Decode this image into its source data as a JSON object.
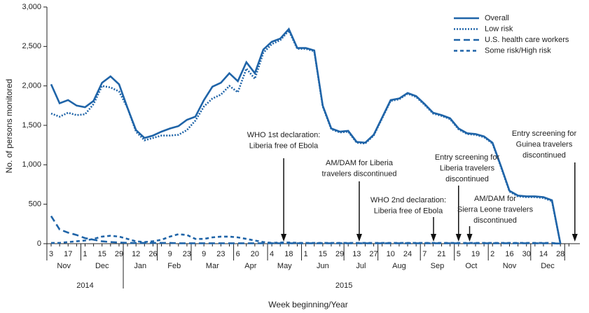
{
  "chart_data": {
    "type": "line",
    "ylabel": "No. of persons monitored",
    "xlabel": "Week beginning/Year",
    "ylim": [
      0,
      3000
    ],
    "yticks": [
      0,
      500,
      {
        "value": 1000,
        "label": "1,000"
      },
      {
        "value": 1500,
        "label": "1,500"
      },
      {
        "value": 2000,
        "label": "2,000"
      },
      {
        "value": 2500,
        "label": "2,500"
      },
      {
        "value": 3000,
        "label": "3,000"
      }
    ],
    "grid": false,
    "legend": "upper right",
    "categories": [
      "3",
      null,
      "17",
      null,
      "1",
      null,
      "15",
      null,
      "29",
      null,
      "12",
      null,
      "26",
      null,
      "9",
      null,
      "23",
      null,
      "9",
      null,
      "23",
      null,
      "6",
      null,
      "20",
      null,
      "4",
      null,
      "18",
      null,
      "1",
      null,
      "15",
      null,
      "29",
      null,
      "13",
      null,
      "27",
      null,
      "10",
      null,
      "24",
      null,
      "7",
      null,
      "21",
      null,
      "5",
      null,
      "19",
      null,
      "2",
      null,
      "16",
      null,
      "30",
      null,
      "14",
      null,
      "28",
      null
    ],
    "month_groups": [
      {
        "label": "Nov",
        "weeks": 4
      },
      {
        "label": "Dec",
        "weeks": 5
      },
      {
        "label": "Jan",
        "weeks": 4
      },
      {
        "label": "Feb",
        "weeks": 4
      },
      {
        "label": "Mar",
        "weeks": 5
      },
      {
        "label": "Apr",
        "weeks": 4
      },
      {
        "label": "May",
        "weeks": 4
      },
      {
        "label": "Jun",
        "weeks": 5
      },
      {
        "label": "Jul",
        "weeks": 4
      },
      {
        "label": "Aug",
        "weeks": 5
      },
      {
        "label": "Sep",
        "weeks": 4
      },
      {
        "label": "Oct",
        "weeks": 4
      },
      {
        "label": "Nov",
        "weeks": 5
      },
      {
        "label": "Dec",
        "weeks": 4
      }
    ],
    "year_groups": [
      {
        "label": "2014",
        "weeks": 9
      },
      {
        "label": "2015",
        "weeks": 52
      }
    ],
    "series": [
      {
        "name": "Overall",
        "color": "#1f64a8",
        "dash": "solid",
        "values": [
          2020,
          1780,
          1820,
          1750,
          1730,
          1810,
          2040,
          2120,
          2020,
          1720,
          1440,
          1340,
          1370,
          1420,
          1460,
          1490,
          1570,
          1610,
          1820,
          1990,
          2040,
          2160,
          2060,
          2300,
          2160,
          2460,
          2560,
          2600,
          2720,
          2480,
          2480,
          2450,
          1750,
          1460,
          1420,
          1430,
          1290,
          1280,
          1380,
          1600,
          1820,
          1840,
          1910,
          1870,
          1770,
          1660,
          1630,
          1590,
          1460,
          1400,
          1390,
          1360,
          1280,
          980,
          670,
          610,
          600,
          600,
          590,
          550,
          0,
          null
        ]
      },
      {
        "name": "Low risk",
        "color": "#1f64a8",
        "dash": "dot",
        "values": [
          1650,
          1610,
          1660,
          1630,
          1640,
          1770,
          2000,
          1980,
          1930,
          1720,
          1420,
          1310,
          1340,
          1370,
          1370,
          1380,
          1440,
          1560,
          1740,
          1840,
          1890,
          2000,
          1920,
          2220,
          2090,
          2420,
          2530,
          2580,
          2700,
          2470,
          2470,
          2440,
          1740,
          1450,
          1410,
          1420,
          1280,
          1270,
          1370,
          1590,
          1810,
          1830,
          1900,
          1860,
          1760,
          1650,
          1620,
          1580,
          1450,
          1390,
          1380,
          1350,
          1270,
          970,
          660,
          600,
          590,
          590,
          580,
          540,
          0,
          null
        ]
      },
      {
        "name": "U.S. health care workers",
        "color": "#1f64a8",
        "dash": "dash",
        "values": [
          350,
          180,
          140,
          110,
          70,
          50,
          30,
          20,
          15,
          10,
          10,
          10,
          10,
          10,
          10,
          5,
          5,
          5,
          5,
          5,
          5,
          5,
          5,
          5,
          5,
          5,
          5,
          5,
          5,
          5,
          5,
          5,
          5,
          5,
          5,
          5,
          5,
          5,
          5,
          5,
          5,
          5,
          5,
          5,
          5,
          5,
          5,
          5,
          5,
          5,
          5,
          5,
          5,
          5,
          5,
          5,
          5,
          5,
          5,
          5,
          0,
          null
        ]
      },
      {
        "name": "Some risk/High risk",
        "color": "#1f64a8",
        "dash": "shortdash",
        "values": [
          10,
          10,
          20,
          30,
          40,
          60,
          90,
          100,
          90,
          60,
          30,
          20,
          30,
          50,
          90,
          120,
          110,
          60,
          60,
          80,
          90,
          90,
          80,
          60,
          40,
          20,
          10,
          15,
          15,
          10,
          10,
          10,
          10,
          10,
          10,
          10,
          10,
          10,
          10,
          10,
          10,
          10,
          10,
          10,
          10,
          10,
          10,
          10,
          10,
          10,
          10,
          10,
          10,
          10,
          10,
          10,
          10,
          10,
          10,
          10,
          0,
          null
        ]
      }
    ],
    "annotations": [
      {
        "lines": [
          "WHO 1st declaration:",
          "Liberia free of Ebola"
        ],
        "x": 27.4
      },
      {
        "lines": [
          "AM/DAM for Liberia",
          "travelers discontinued"
        ],
        "x": 36.3
      },
      {
        "lines": [
          "WHO 2nd declaration:",
          "Liberia free of Ebola"
        ],
        "x": 45.05
      },
      {
        "lines": [
          "Entry screening for",
          "Liberia travelers",
          "discontinued"
        ],
        "x": 48.0
      },
      {
        "lines": [
          "AM/DAM for",
          "Sierra Leone travelers",
          "discontinued"
        ],
        "x": 49.3
      },
      {
        "lines": [
          "Entry screening for",
          "Guinea travelers",
          "discontinued"
        ],
        "x": 61.7
      }
    ]
  }
}
